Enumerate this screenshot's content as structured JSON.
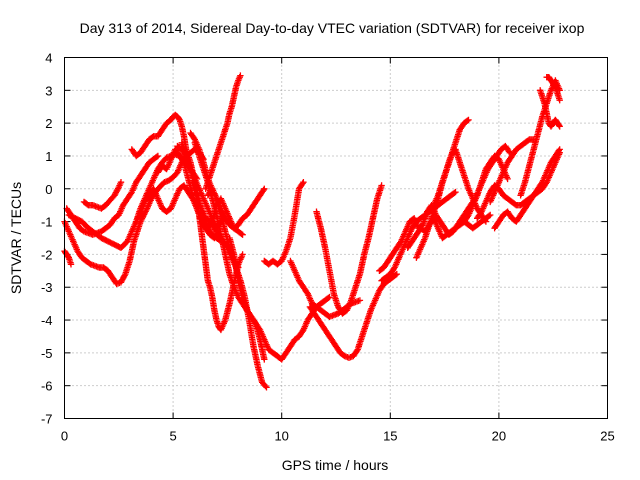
{
  "chart_data": {
    "type": "scatter",
    "title": "Day 313 of 2014, Sidereal Day-to-day VTEC variation (SDTVAR) for receiver ixop",
    "xlabel": "GPS time / hours",
    "ylabel": "SDTVAR / TECUs",
    "xlim": [
      0,
      25
    ],
    "ylim": [
      -7,
      4
    ],
    "xticks": [
      "0",
      "5",
      "10",
      "15",
      "20",
      "25"
    ],
    "yticks": [
      "-7",
      "-6",
      "-5",
      "-4",
      "-3",
      "-2",
      "-1",
      "0",
      "1",
      "2",
      "3",
      "4"
    ],
    "grid": true,
    "marker": "plus",
    "marker_color": "#ff0000",
    "series": [
      {
        "x": [
          0.0,
          0.1,
          0.2,
          0.3
        ],
        "y": [
          -1.9,
          -2.0,
          -2.1,
          -2.3
        ]
      },
      {
        "x": [
          0.0,
          0.2,
          0.4,
          0.6,
          0.8,
          1.0,
          1.2,
          1.4,
          1.6,
          1.8,
          2.0,
          2.2,
          2.4,
          2.6,
          2.8,
          3.0,
          3.2,
          3.5,
          3.8,
          4.0,
          4.3,
          4.6,
          4.8,
          5.0,
          5.2,
          5.4,
          5.6,
          5.8,
          6.0,
          6.2,
          6.4
        ],
        "y": [
          -1.0,
          -1.3,
          -1.6,
          -1.9,
          -2.1,
          -2.2,
          -2.3,
          -2.35,
          -2.4,
          -2.4,
          -2.5,
          -2.7,
          -2.9,
          -2.85,
          -2.6,
          -2.2,
          -1.6,
          -1.0,
          -0.6,
          -0.3,
          0.0,
          0.2,
          0.25,
          0.35,
          0.5,
          0.8,
          1.0,
          1.1,
          1.2,
          1.1,
          0.9
        ]
      },
      {
        "x": [
          0.1,
          0.3,
          0.5,
          0.7,
          0.9,
          1.1,
          1.3,
          1.5,
          1.7,
          1.9,
          2.1,
          2.3,
          2.5,
          2.7,
          2.9,
          3.1,
          3.3,
          3.5,
          3.7,
          3.9,
          4.1,
          4.3
        ],
        "y": [
          -0.6,
          -0.8,
          -1.0,
          -1.2,
          -1.3,
          -1.35,
          -1.4,
          -1.35,
          -1.3,
          -1.2,
          -1.1,
          -0.9,
          -0.8,
          -0.5,
          -0.3,
          -0.1,
          0.2,
          0.4,
          0.6,
          0.8,
          0.9,
          1.0
        ]
      },
      {
        "x": [
          0.9,
          1.1,
          1.3,
          1.5,
          1.7,
          1.9,
          2.1,
          2.3,
          2.5,
          2.6
        ],
        "y": [
          -0.4,
          -0.5,
          -0.5,
          -0.55,
          -0.6,
          -0.5,
          -0.35,
          -0.2,
          0.05,
          0.2
        ]
      },
      {
        "x": [
          0.2,
          0.5,
          0.8,
          1.1,
          1.4,
          1.7,
          2.0,
          2.3,
          2.6,
          2.9,
          3.1,
          3.3,
          3.5,
          3.7,
          3.9,
          4.1,
          4.3,
          4.5,
          4.7,
          4.9,
          5.1,
          5.3,
          5.5,
          5.7,
          5.9,
          6.1
        ],
        "y": [
          -0.8,
          -0.9,
          -1.0,
          -1.2,
          -1.35,
          -1.5,
          -1.6,
          -1.7,
          -1.8,
          -1.6,
          -1.3,
          -1.0,
          -0.6,
          -0.3,
          0.0,
          0.3,
          0.6,
          0.8,
          0.95,
          1.0,
          1.05,
          1.0,
          0.9,
          0.7,
          0.5,
          0.3
        ]
      },
      {
        "x": [
          3.1,
          3.3,
          3.5,
          3.7,
          3.9,
          4.1,
          4.3,
          4.5,
          4.7,
          4.9,
          5.0,
          5.1,
          5.2,
          5.3,
          5.4,
          5.5,
          5.6,
          5.8,
          6.0,
          6.2,
          6.4,
          6.6,
          6.8,
          7.0,
          7.2
        ],
        "y": [
          1.2,
          1.0,
          1.1,
          1.3,
          1.5,
          1.6,
          1.6,
          1.8,
          2.0,
          2.1,
          2.2,
          2.25,
          2.2,
          2.1,
          1.9,
          1.6,
          1.2,
          0.8,
          0.2,
          -0.4,
          -0.9,
          -1.2,
          -1.4,
          -1.5,
          -1.6
        ]
      },
      {
        "x": [
          3.3,
          3.5,
          3.7,
          3.9,
          4.1,
          4.3,
          4.5,
          4.7,
          4.9,
          5.1,
          5.3,
          5.5,
          5.7,
          5.9,
          6.1,
          6.3,
          6.5,
          6.7,
          6.9
        ],
        "y": [
          -1.0,
          -0.7,
          -0.4,
          -0.2,
          0.0,
          -0.3,
          -0.6,
          -0.7,
          -0.6,
          -0.3,
          0.0,
          0.1,
          -0.1,
          -0.3,
          -0.6,
          -0.9,
          -1.2,
          -1.4,
          -1.5
        ]
      },
      {
        "x": [
          4.3,
          4.5,
          4.7,
          4.9,
          5.1,
          5.3,
          5.5,
          5.7,
          5.9,
          6.1,
          6.3,
          6.5,
          6.7,
          6.9,
          7.0,
          7.2,
          7.4,
          7.6,
          7.8,
          8.0,
          8.2
        ],
        "y": [
          0.5,
          0.7,
          0.6,
          0.9,
          1.2,
          1.0,
          0.8,
          0.3,
          -0.2,
          -0.6,
          -1.0,
          -1.2,
          -1.1,
          -0.8,
          -0.5,
          -0.3,
          -0.6,
          -0.9,
          -1.2,
          -1.3,
          -1.4
        ]
      },
      {
        "x": [
          5.2,
          5.4,
          5.6,
          5.8,
          6.0,
          6.1,
          6.2,
          6.3,
          6.4,
          6.5,
          6.6,
          6.7,
          6.8,
          6.9,
          7.0,
          7.1,
          7.2,
          7.4,
          7.6,
          7.8,
          8.0,
          8.2
        ],
        "y": [
          1.3,
          1.2,
          1.0,
          0.6,
          0.1,
          -0.3,
          -0.8,
          -1.3,
          -1.8,
          -2.3,
          -2.8,
          -3.0,
          -3.3,
          -3.7,
          -4.0,
          -4.2,
          -4.3,
          -4.0,
          -3.5,
          -2.9,
          -2.3,
          -2.0
        ]
      },
      {
        "x": [
          5.8,
          6.0,
          6.2,
          6.4,
          6.6,
          6.8,
          7.0,
          7.2,
          7.4,
          7.6,
          7.8,
          8.0
        ],
        "y": [
          1.7,
          1.5,
          1.2,
          0.8,
          0.3,
          0.0,
          -0.3,
          -0.8,
          -1.3,
          -1.8,
          -2.2,
          -2.4
        ]
      },
      {
        "x": [
          5.9,
          6.1,
          6.3,
          6.5,
          6.7,
          6.9,
          7.1,
          7.3,
          7.5,
          7.7,
          7.9,
          8.1,
          8.3,
          8.5,
          8.7,
          8.9,
          9.1,
          9.3
        ],
        "y": [
          0.2,
          -0.3,
          -0.6,
          -0.9,
          -1.0,
          -1.2,
          -1.4,
          -1.6,
          -1.8,
          -2.1,
          -2.4,
          -2.8,
          -3.3,
          -4.0,
          -4.8,
          -5.4,
          -5.9,
          -6.05
        ]
      },
      {
        "x": [
          6.0,
          6.2,
          6.4,
          6.6,
          6.8,
          7.0,
          7.2,
          7.4,
          7.6,
          7.8,
          8.0,
          8.2,
          8.4,
          8.6,
          8.8,
          9.0,
          9.2
        ],
        "y": [
          1.4,
          1.0,
          0.6,
          0.2,
          -0.3,
          -0.8,
          -1.4,
          -2.0,
          -2.6,
          -3.0,
          -3.3,
          -3.5,
          -3.7,
          -3.9,
          -4.1,
          -4.6,
          -5.2
        ]
      },
      {
        "x": [
          5.4,
          5.6,
          5.8,
          6.0,
          6.2,
          6.4,
          6.6,
          6.8,
          7.0,
          7.2,
          7.4
        ],
        "y": [
          1.4,
          1.0,
          0.6,
          0.3,
          0.0,
          -0.3,
          -0.6,
          -0.9,
          -1.2,
          -1.0,
          -0.8
        ]
      },
      {
        "x": [
          6.5,
          6.7,
          6.9,
          7.1,
          7.3,
          7.5,
          7.6,
          7.7,
          7.8,
          7.9,
          8.0,
          8.1
        ],
        "y": [
          0.0,
          0.4,
          0.8,
          1.2,
          1.6,
          2.0,
          2.3,
          2.5,
          2.8,
          3.1,
          3.3,
          3.45
        ]
      },
      {
        "x": [
          6.6,
          6.8,
          7.0,
          7.2,
          7.4,
          7.6,
          7.8,
          8.0,
          8.2,
          8.4,
          8.6,
          8.8,
          9.0,
          9.2
        ],
        "y": [
          -0.2,
          0.0,
          -0.3,
          -0.6,
          -0.9,
          -1.1,
          -1.2,
          -1.1,
          -0.9,
          -0.8,
          -0.6,
          -0.4,
          -0.2,
          0.0
        ]
      },
      {
        "x": [
          7.6,
          7.8,
          8.0,
          8.2,
          8.4,
          8.6,
          8.8,
          9.0,
          9.2,
          9.4,
          9.6,
          9.8,
          10.0,
          10.2,
          10.4,
          10.6,
          10.8,
          11.0,
          11.2,
          11.4,
          11.6,
          11.8,
          12.0,
          12.2
        ],
        "y": [
          -1.5,
          -2.0,
          -2.8,
          -3.3,
          -3.7,
          -3.9,
          -4.1,
          -4.3,
          -4.6,
          -4.9,
          -5.0,
          -5.1,
          -5.2,
          -5.0,
          -4.8,
          -4.6,
          -4.5,
          -4.3,
          -4.0,
          -3.8,
          -3.6,
          -3.5,
          -3.4,
          -3.3
        ]
      },
      {
        "x": [
          9.2,
          9.4,
          9.6,
          9.8,
          10.0,
          10.2,
          10.4,
          10.6,
          10.8,
          11.0
        ],
        "y": [
          -2.2,
          -2.3,
          -2.2,
          -2.3,
          -2.2,
          -1.9,
          -1.5,
          -0.8,
          0.0,
          0.2
        ]
      },
      {
        "x": [
          10.4,
          10.6,
          10.8,
          11.0,
          11.2,
          11.4,
          11.6,
          11.8,
          12.0,
          12.2,
          12.4,
          12.6,
          12.8,
          13.0,
          13.2,
          13.4,
          13.6
        ],
        "y": [
          -2.2,
          -2.5,
          -2.8,
          -3.0,
          -3.2,
          -3.5,
          -3.6,
          -3.7,
          -3.8,
          -3.9,
          -3.85,
          -3.8,
          -3.7,
          -3.6,
          -3.5,
          -3.45,
          -3.4
        ]
      },
      {
        "x": [
          11.6,
          11.8,
          12.0,
          12.2,
          12.4,
          12.6,
          12.8,
          13.0,
          13.2,
          13.4,
          13.6,
          13.8,
          14.0,
          14.2,
          14.4,
          14.6
        ],
        "y": [
          -0.7,
          -1.2,
          -1.8,
          -2.5,
          -3.2,
          -3.6,
          -3.8,
          -3.7,
          -3.4,
          -3.0,
          -2.6,
          -2.0,
          -1.5,
          -0.9,
          -0.3,
          0.1
        ]
      },
      {
        "x": [
          11.3,
          11.5,
          11.7,
          11.9,
          12.1,
          12.3,
          12.5,
          12.7,
          12.9,
          13.1,
          13.3,
          13.5,
          13.7,
          13.9,
          14.1,
          14.3,
          14.5,
          14.7,
          14.9,
          15.1,
          15.3
        ],
        "y": [
          -3.6,
          -3.8,
          -4.0,
          -4.2,
          -4.4,
          -4.6,
          -4.8,
          -5.0,
          -5.1,
          -5.15,
          -5.1,
          -4.9,
          -4.5,
          -4.1,
          -3.7,
          -3.4,
          -3.1,
          -2.9,
          -2.8,
          -2.7,
          -2.6
        ]
      },
      {
        "x": [
          14.6,
          14.8,
          15.0,
          15.2,
          15.4,
          15.6,
          15.8,
          16.0,
          16.2,
          16.4,
          16.6,
          16.8,
          17.0,
          17.2,
          17.4,
          17.6,
          17.8,
          18.0
        ],
        "y": [
          -2.8,
          -2.7,
          -2.6,
          -2.4,
          -2.1,
          -1.8,
          -1.5,
          -1.2,
          -1.0,
          -0.9,
          -0.8,
          -0.7,
          -0.6,
          -0.5,
          -0.4,
          -0.3,
          -0.2,
          -0.1
        ]
      },
      {
        "x": [
          14.5,
          14.7,
          14.9,
          15.1,
          15.3,
          15.5,
          15.7,
          15.9,
          16.1,
          16.3,
          16.5,
          16.7,
          16.9,
          17.1,
          17.3,
          17.5,
          17.7,
          17.9,
          18.1,
          18.3,
          18.5,
          18.7,
          18.9,
          19.1,
          19.3,
          19.5,
          19.7,
          19.9,
          20.1,
          20.3,
          20.5
        ],
        "y": [
          -2.5,
          -2.4,
          -2.2,
          -2.0,
          -1.8,
          -1.6,
          -1.3,
          -1.0,
          -0.9,
          -1.2,
          -1.1,
          -0.7,
          -0.5,
          -0.8,
          -1.0,
          -1.2,
          -1.4,
          -1.3,
          -1.1,
          -0.9,
          -0.7,
          -0.5,
          -0.3,
          0.0,
          0.3,
          0.6,
          0.8,
          1.0,
          1.2,
          1.3,
          1.1
        ]
      },
      {
        "x": [
          15.8,
          16.0,
          16.2,
          16.4,
          16.6,
          16.8,
          17.0,
          17.2,
          17.4,
          17.6,
          17.8,
          18.0,
          18.2,
          18.4,
          18.6,
          18.8,
          19.0,
          19.2,
          19.4,
          19.6
        ],
        "y": [
          -1.8,
          -1.6,
          -1.4,
          -1.2,
          -1.3,
          -1.1,
          -0.9,
          -1.2,
          -1.5,
          -1.4,
          -1.3,
          -1.2,
          -1.1,
          -1.0,
          -1.1,
          -1.2,
          -1.1,
          -1.0,
          -0.9,
          -0.8
        ]
      },
      {
        "x": [
          16.2,
          16.4,
          16.6,
          16.8,
          17.0,
          17.2,
          17.4,
          17.6,
          17.8,
          18.0,
          18.2,
          18.4,
          18.6
        ],
        "y": [
          -2.1,
          -1.8,
          -1.5,
          -1.1,
          -0.7,
          -0.3,
          0.2,
          0.6,
          1.0,
          1.4,
          1.8,
          2.0,
          2.1
        ]
      },
      {
        "x": [
          17.0,
          17.2,
          17.4,
          17.6,
          17.8,
          18.0,
          18.2,
          18.4,
          18.6,
          18.8,
          19.0,
          19.2,
          19.4
        ],
        "y": [
          -0.5,
          -0.2,
          0.2,
          0.6,
          1.0,
          1.2,
          0.8,
          0.4,
          0.0,
          -0.3,
          -0.6,
          -0.8,
          -1.0
        ]
      },
      {
        "x": [
          18.2,
          18.4,
          18.6,
          18.8,
          19.0,
          19.2,
          19.4,
          19.6,
          19.8,
          20.0,
          20.2,
          20.4
        ],
        "y": [
          -1.1,
          -1.0,
          -0.8,
          -0.5,
          -0.2,
          0.2,
          0.6,
          0.8,
          1.0,
          0.9,
          0.6,
          0.3
        ]
      },
      {
        "x": [
          19.0,
          19.2,
          19.4,
          19.6,
          19.8,
          20.0,
          20.2,
          20.4,
          20.6,
          20.8,
          21.0,
          21.2,
          21.4,
          21.6,
          21.8,
          22.0,
          22.2,
          22.4,
          22.6,
          22.8
        ],
        "y": [
          -0.9,
          -0.7,
          -0.4,
          -0.1,
          0.1,
          0.0,
          -0.2,
          -0.3,
          -0.4,
          -0.5,
          -0.5,
          -0.4,
          -0.3,
          -0.2,
          -0.1,
          0.0,
          0.2,
          0.5,
          0.8,
          1.1
        ]
      },
      {
        "x": [
          19.8,
          20.0,
          20.2,
          20.4,
          20.6,
          20.8,
          21.0,
          21.2,
          21.4,
          21.6,
          21.8,
          22.0,
          22.2,
          22.4,
          22.6,
          22.8
        ],
        "y": [
          -1.2,
          -1.0,
          -0.8,
          -0.7,
          -0.9,
          -1.0,
          -0.8,
          -0.6,
          -0.4,
          -0.2,
          0.0,
          0.2,
          0.5,
          0.8,
          1.0,
          1.2
        ]
      },
      {
        "x": [
          19.6,
          19.8,
          20.0,
          20.2,
          20.4,
          20.6,
          20.8,
          21.0,
          21.2,
          21.4,
          21.6
        ],
        "y": [
          -0.4,
          -0.1,
          0.2,
          0.5,
          0.8,
          1.0,
          1.2,
          1.3,
          1.4,
          1.5,
          1.5
        ]
      },
      {
        "x": [
          21.0,
          21.2,
          21.4,
          21.6,
          21.8,
          22.0,
          22.2,
          22.4,
          22.6,
          22.8
        ],
        "y": [
          -0.2,
          0.2,
          0.7,
          1.2,
          1.7,
          2.2,
          2.6,
          3.0,
          3.3,
          3.0
        ]
      },
      {
        "x": [
          21.9,
          22.0,
          22.1,
          22.2,
          22.3,
          22.4,
          22.5,
          22.6,
          22.7,
          22.8
        ],
        "y": [
          3.0,
          2.8,
          2.6,
          2.3,
          2.0,
          1.9,
          2.0,
          2.1,
          2.0,
          1.9
        ]
      },
      {
        "x": [
          22.2,
          22.3,
          22.4,
          22.5,
          22.6,
          22.7,
          22.8
        ],
        "y": [
          3.4,
          3.4,
          3.3,
          3.2,
          3.1,
          2.9,
          2.7
        ]
      }
    ]
  }
}
